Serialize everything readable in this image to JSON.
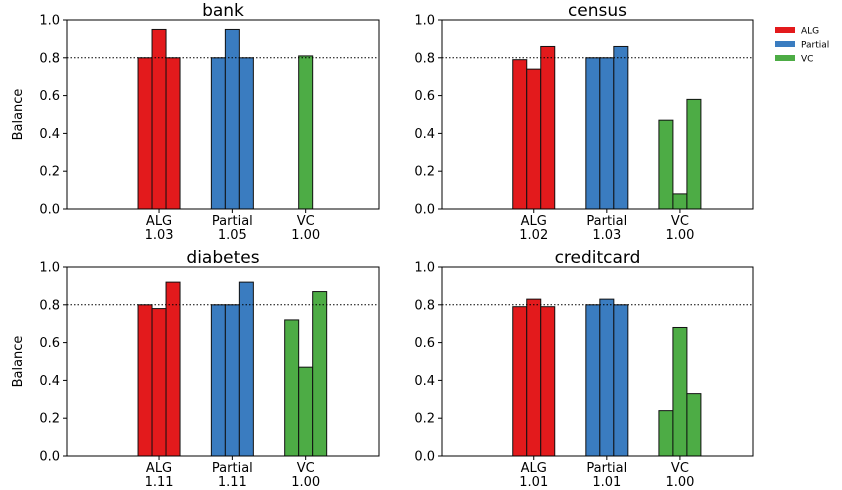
{
  "chart_data": [
    {
      "type": "bar",
      "title": "bank",
      "ylabel": "Balance",
      "ylim": [
        0,
        1.0
      ],
      "yticks": [
        "0.0",
        "0.2",
        "0.4",
        "0.6",
        "0.8",
        "1.0"
      ],
      "reference_line": 0.8,
      "groups": [
        {
          "label": "ALG",
          "score": "1.03",
          "values": [
            0.8,
            0.95,
            0.8
          ]
        },
        {
          "label": "Partial",
          "score": "1.05",
          "values": [
            0.8,
            0.95,
            0.8
          ]
        },
        {
          "label": "VC",
          "score": "1.00",
          "values": [
            0.81
          ]
        }
      ]
    },
    {
      "type": "bar",
      "title": "census",
      "ylabel": "",
      "ylim": [
        0,
        1.0
      ],
      "yticks": [
        "0.0",
        "0.2",
        "0.4",
        "0.6",
        "0.8",
        "1.0"
      ],
      "reference_line": 0.8,
      "groups": [
        {
          "label": "ALG",
          "score": "1.02",
          "values": [
            0.79,
            0.74,
            0.86
          ]
        },
        {
          "label": "Partial",
          "score": "1.03",
          "values": [
            0.8,
            0.8,
            0.86
          ]
        },
        {
          "label": "VC",
          "score": "1.00",
          "values": [
            0.47,
            0.08,
            0.58
          ]
        }
      ]
    },
    {
      "type": "bar",
      "title": "diabetes",
      "ylabel": "Balance",
      "ylim": [
        0,
        1.0
      ],
      "yticks": [
        "0.0",
        "0.2",
        "0.4",
        "0.6",
        "0.8",
        "1.0"
      ],
      "reference_line": 0.8,
      "groups": [
        {
          "label": "ALG",
          "score": "1.11",
          "values": [
            0.8,
            0.78,
            0.92
          ]
        },
        {
          "label": "Partial",
          "score": "1.11",
          "values": [
            0.8,
            0.8,
            0.92
          ]
        },
        {
          "label": "VC",
          "score": "1.00",
          "values": [
            0.72,
            0.47,
            0.87
          ]
        }
      ]
    },
    {
      "type": "bar",
      "title": "creditcard",
      "ylabel": "",
      "ylim": [
        0,
        1.0
      ],
      "yticks": [
        "0.0",
        "0.2",
        "0.4",
        "0.6",
        "0.8",
        "1.0"
      ],
      "reference_line": 0.8,
      "groups": [
        {
          "label": "ALG",
          "score": "1.01",
          "values": [
            0.79,
            0.83,
            0.79
          ]
        },
        {
          "label": "Partial",
          "score": "1.01",
          "values": [
            0.8,
            0.83,
            0.8
          ]
        },
        {
          "label": "VC",
          "score": "1.00",
          "values": [
            0.24,
            0.68,
            0.33
          ]
        }
      ]
    }
  ],
  "legend": {
    "placement": "top-right outside",
    "entries": [
      {
        "name": "ALG",
        "color": "#e31a1c"
      },
      {
        "name": "Partial",
        "color": "#3a7cc0"
      },
      {
        "name": "VC",
        "color": "#4dac45"
      }
    ]
  },
  "colors": {
    "ALG": "#e31a1c",
    "Partial": "#3a7cc0",
    "VC": "#4dac45"
  }
}
